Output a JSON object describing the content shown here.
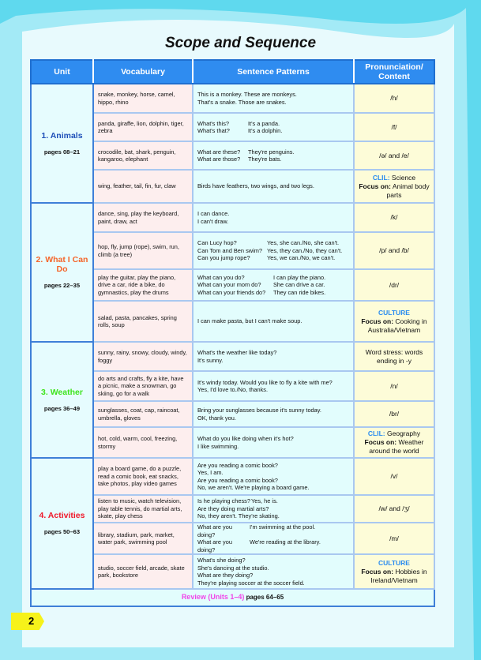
{
  "title": "Scope and Sequence",
  "headers": {
    "unit": "Unit",
    "vocabulary": "Vocabulary",
    "sentence_patterns": "Sentence Patterns",
    "pronunciation": "Pronunciation/ Content"
  },
  "units": [
    {
      "name": "1. Animals",
      "pages": "pages 08–21",
      "color": "#1e4fb8",
      "rows": [
        {
          "vocab": "snake, monkey, horse, camel, hippo, rhino",
          "sentences": [
            [
              "This is a monkey. These are monkeys."
            ],
            [
              "That's a snake. Those are snakes."
            ]
          ],
          "pron": {
            "text": "/h/"
          }
        },
        {
          "vocab": "panda, giraffe, lion, dolphin, tiger, zebra",
          "sentences": [
            [
              "What's this?",
              "It's a panda."
            ],
            [
              "What's that?",
              "It's a dolphin."
            ]
          ],
          "pron": {
            "text": "/f/"
          }
        },
        {
          "vocab": "crocodile, bat, shark, penguin, kangaroo, elephant",
          "sentences": [
            [
              "What are these?",
              "They're penguins."
            ],
            [
              "What are those?",
              "They're bats."
            ]
          ],
          "pron": {
            "text": "/ə/ and /e/"
          }
        },
        {
          "vocab": "wing, feather, tail, fin, fur, claw",
          "sentences": [
            [
              "Birds have feathers, two wings, and two legs."
            ]
          ],
          "pron": {
            "keyword": "CLIL:",
            "keyword_text": "Science",
            "focus": "Focus on:",
            "focus_text": "Animal body parts"
          }
        }
      ]
    },
    {
      "name": "2. What I Can Do",
      "pages": "pages 22–35",
      "color": "#f5652a",
      "rows": [
        {
          "vocab": "dance, sing, play the keyboard, paint, draw, act",
          "sentences": [
            [
              "I can dance."
            ],
            [
              "I can't draw."
            ]
          ],
          "pron": {
            "text": "/k/"
          }
        },
        {
          "vocab": "hop, fly, jump (rope), swim, run, climb (a tree)",
          "sentences": [
            [
              "Can Lucy hop?",
              "Yes, she can./No, she can't."
            ],
            [
              "Can Tom and Ben swim?",
              "Yes, they can./No, they can't."
            ],
            [
              "Can you jump rope?",
              "Yes, we can./No, we can't."
            ]
          ],
          "pron": {
            "text": "/p/ and /b/"
          }
        },
        {
          "vocab": "play the guitar, play the piano, drive a car, ride a bike, do gymnastics, play the drums",
          "sentences": [
            [
              "What can you do?",
              "I can play the piano."
            ],
            [
              "What can your mom do?",
              "She can drive a car."
            ],
            [
              "What can your friends do?",
              "They can ride bikes."
            ]
          ],
          "pron": {
            "text": "/dr/"
          }
        },
        {
          "vocab": "salad, pasta, pancakes, spring rolls, soup",
          "sentences": [
            [
              "I can make pasta, but I can't make soup."
            ]
          ],
          "pron": {
            "keyword": "CULTURE",
            "keyword_text": "",
            "focus": "Focus on:",
            "focus_text": "Cooking in Australia/Vietnam"
          }
        }
      ]
    },
    {
      "name": "3. Weather",
      "pages": "pages 36–49",
      "color": "#3ee41c",
      "rows": [
        {
          "vocab": "sunny, rainy, snowy, cloudy, windy, foggy",
          "sentences": [
            [
              "What's the weather like today?"
            ],
            [
              "It's sunny."
            ]
          ],
          "pron": {
            "text": "Word stress: words ending in -y"
          }
        },
        {
          "vocab": "do arts and crafts, fly a kite, have a picnic, make a snowman, go skiing, go for a walk",
          "sentences": [
            [
              "It's windy today. Would you like to fly a kite with me?"
            ],
            [
              "Yes, I'd love to./No, thanks."
            ]
          ],
          "pron": {
            "text": "/n/"
          }
        },
        {
          "vocab": "sunglasses, coat, cap, raincoat, umbrella, gloves",
          "sentences": [
            [
              "Bring your sunglasses because it's sunny today."
            ],
            [
              "OK, thank you."
            ]
          ],
          "pron": {
            "text": "/br/"
          }
        },
        {
          "vocab": "hot, cold, warm, cool, freezing, stormy",
          "sentences": [
            [
              "What do you like doing when it's hot?"
            ],
            [
              "I like swimming."
            ]
          ],
          "pron": {
            "keyword": "CLIL:",
            "keyword_text": "Geography",
            "focus": "Focus on:",
            "focus_text": "Weather around the world"
          }
        }
      ]
    },
    {
      "name": "4. Activities",
      "pages": "pages 50–63",
      "color": "#f0182a",
      "rows": [
        {
          "vocab": "play a board game, do a puzzle, read a comic book, eat snacks, take photos, play video games",
          "sentences": [
            [
              "Are you reading a comic book?"
            ],
            [
              "Yes, I am."
            ],
            [
              "Are you reading a comic book?"
            ],
            [
              "No, we aren't. We're playing a board game."
            ]
          ],
          "pron": {
            "text": "/v/"
          }
        },
        {
          "vocab": "listen to music, watch television, play table tennis, do martial arts, skate, play chess",
          "sentences": [
            [
              "Is he playing chess?",
              "Yes, he is."
            ],
            [
              "Are they doing martial arts?"
            ],
            [
              "No, they aren't. They're skating."
            ]
          ],
          "pron": {
            "text": "/w/ and /ʒ/"
          }
        },
        {
          "vocab": "library, stadium, park, market, water park, swimming pool",
          "sentences": [
            [
              "What are you doing?",
              "I'm swimming at the pool."
            ],
            [
              "What are you doing?",
              "We're reading at the library."
            ]
          ],
          "pron": {
            "text": "/m/"
          }
        },
        {
          "vocab": "studio, soccer field, arcade, skate park, bookstore",
          "sentences": [
            [
              "What's she doing?"
            ],
            [
              "She's dancing at the studio."
            ],
            [
              "What are they doing?"
            ],
            [
              "They're playing soccer at the soccer field."
            ]
          ],
          "pron": {
            "keyword": "CULTURE",
            "keyword_text": "",
            "focus": "Focus on:",
            "focus_text": "Hobbies in Ireland/Vietnam"
          }
        }
      ]
    }
  ],
  "review": {
    "label": "Review (Units 1–4)",
    "pages": "pages 64–65"
  },
  "page_number": "2",
  "colors": {
    "header": "#2f8cf0",
    "border": "#3f7fd8",
    "vocab_bg": "#fdeeee",
    "sentence_bg": "#e2fdfd",
    "pron_bg": "#fdfcd8",
    "review": "#f045e8",
    "page_tab": "#f6f21a"
  }
}
